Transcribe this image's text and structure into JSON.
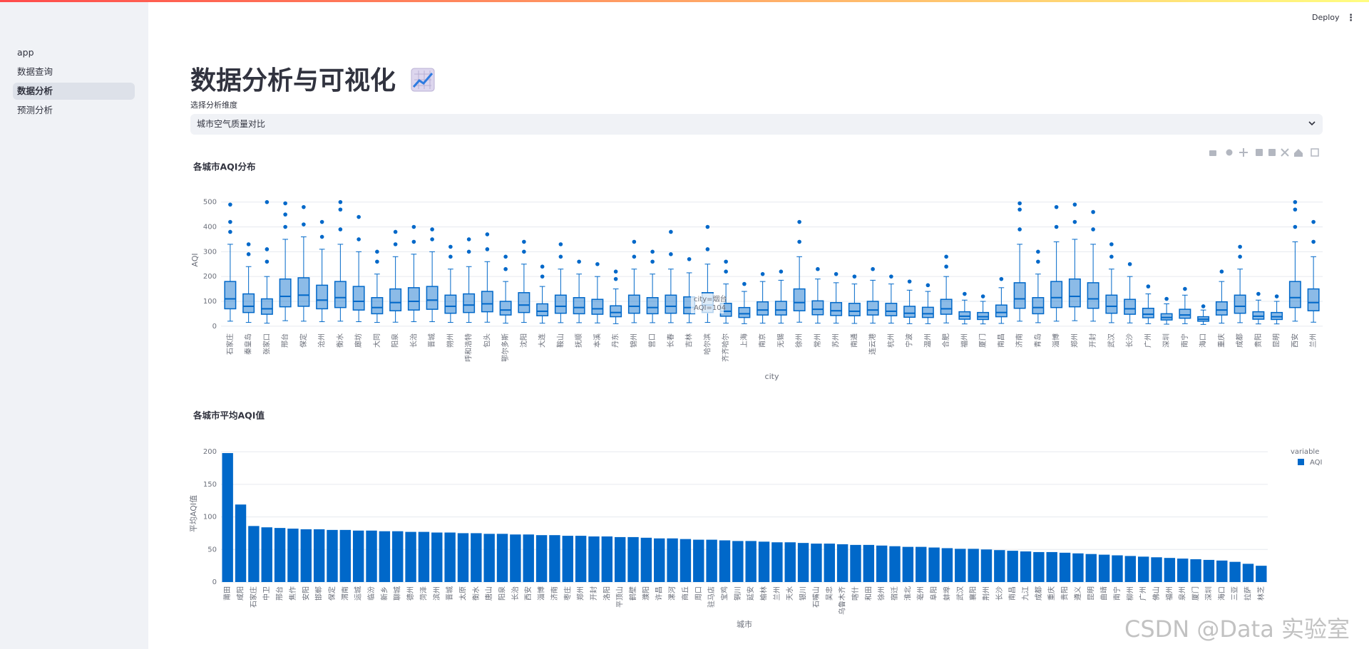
{
  "sidebar": {
    "items": [
      "app",
      "数据查询",
      "数据分析",
      "预测分析"
    ],
    "active": 2
  },
  "header": {
    "deploy": "Deploy"
  },
  "page": {
    "title": "数据分析与可视化",
    "select_label": "选择分析维度",
    "select_value": "城市空气质量对比"
  },
  "chart_data": [
    {
      "type": "box",
      "title": "各城市AQI分布",
      "x_label": "city",
      "y_label": "AQI",
      "color": "#0068c9",
      "grid": true,
      "ylim": [
        -12,
        545
      ],
      "yticks": [
        0,
        100,
        200,
        300,
        400,
        500
      ],
      "categories": [
        "石家庄",
        "秦皇岛",
        "张家口",
        "邢台",
        "保定",
        "沧州",
        "衡水",
        "廊坊",
        "大同",
        "阳泉",
        "长治",
        "晋城",
        "朔州",
        "呼和浩特",
        "包头",
        "鄂尔多斯",
        "沈阳",
        "大连",
        "鞍山",
        "抚顺",
        "本溪",
        "丹东",
        "锦州",
        "营口",
        "长春",
        "吉林",
        "哈尔滨",
        "齐齐哈尔",
        "上海",
        "南京",
        "无锡",
        "徐州",
        "常州",
        "苏州",
        "南通",
        "连云港",
        "杭州",
        "宁波",
        "温州",
        "合肥",
        "福州",
        "厦门",
        "南昌",
        "济南",
        "青岛",
        "淄博",
        "郑州",
        "开封",
        "武汉",
        "长沙",
        "广州",
        "深圳",
        "南宁",
        "海口",
        "重庆",
        "成都",
        "贵阳",
        "昆明",
        "西安",
        "兰州"
      ],
      "min": [
        20,
        15,
        12,
        22,
        20,
        18,
        20,
        18,
        15,
        16,
        18,
        18,
        15,
        15,
        16,
        12,
        15,
        12,
        14,
        14,
        13,
        10,
        14,
        14,
        14,
        14,
        15,
        12,
        10,
        12,
        12,
        16,
        12,
        12,
        11,
        12,
        12,
        10,
        10,
        13,
        9,
        9,
        11,
        20,
        14,
        20,
        22,
        20,
        14,
        13,
        10,
        8,
        10,
        7,
        12,
        14,
        9,
        9,
        20,
        16
      ],
      "q1": [
        70,
        55,
        48,
        78,
        80,
        70,
        75,
        65,
        50,
        62,
        65,
        68,
        52,
        55,
        58,
        45,
        55,
        42,
        52,
        50,
        48,
        38,
        52,
        50,
        52,
        50,
        55,
        40,
        35,
        45,
        45,
        62,
        46,
        43,
        42,
        45,
        42,
        36,
        35,
        48,
        28,
        27,
        38,
        72,
        50,
        75,
        78,
        72,
        52,
        48,
        34,
        25,
        32,
        20,
        45,
        52,
        28,
        27,
        75,
        62
      ],
      "median": [
        110,
        80,
        70,
        120,
        125,
        105,
        115,
        100,
        75,
        95,
        100,
        105,
        80,
        85,
        90,
        65,
        85,
        60,
        80,
        75,
        70,
        55,
        80,
        75,
        80,
        75,
        85,
        60,
        50,
        65,
        65,
        95,
        68,
        62,
        60,
        65,
        60,
        52,
        50,
        70,
        40,
        38,
        55,
        110,
        75,
        115,
        120,
        110,
        80,
        70,
        48,
        35,
        45,
        28,
        65,
        80,
        40,
        38,
        115,
        95
      ],
      "q3": [
        180,
        130,
        110,
        190,
        195,
        165,
        180,
        160,
        115,
        150,
        155,
        160,
        125,
        130,
        140,
        100,
        135,
        90,
        125,
        115,
        108,
        82,
        125,
        115,
        125,
        118,
        135,
        92,
        75,
        98,
        100,
        150,
        102,
        95,
        92,
        100,
        92,
        80,
        76,
        108,
        58,
        55,
        85,
        175,
        115,
        180,
        190,
        175,
        125,
        108,
        72,
        50,
        68,
        38,
        98,
        125,
        58,
        55,
        180,
        150
      ],
      "max": [
        330,
        240,
        200,
        350,
        360,
        310,
        330,
        300,
        210,
        280,
        290,
        300,
        230,
        240,
        260,
        180,
        250,
        160,
        230,
        210,
        200,
        150,
        230,
        210,
        230,
        215,
        250,
        170,
        140,
        180,
        185,
        280,
        190,
        175,
        170,
        185,
        170,
        145,
        140,
        200,
        105,
        100,
        155,
        330,
        210,
        340,
        350,
        330,
        230,
        200,
        130,
        90,
        125,
        65,
        180,
        230,
        105,
        100,
        340,
        280
      ],
      "outliers": [
        [
          380,
          420,
          490
        ],
        [
          290,
          330
        ],
        [
          260,
          310,
          500
        ],
        [
          400,
          450,
          495
        ],
        [
          410,
          480
        ],
        [
          360,
          420
        ],
        [
          390,
          470,
          500
        ],
        [
          350,
          440
        ],
        [
          260,
          300
        ],
        [
          330,
          380
        ],
        [
          340,
          400
        ],
        [
          350,
          390
        ],
        [
          280,
          320
        ],
        [
          300,
          350
        ],
        [
          310,
          370
        ],
        [
          230,
          280
        ],
        [
          300,
          340
        ],
        [
          200,
          240
        ],
        [
          280,
          330
        ],
        [
          260
        ],
        [
          250
        ],
        [
          190,
          220
        ],
        [
          280,
          340
        ],
        [
          260,
          300
        ],
        [
          290,
          380
        ],
        [
          270
        ],
        [
          310,
          400
        ],
        [
          220,
          260
        ],
        [
          170
        ],
        [
          210
        ],
        [
          220
        ],
        [
          340,
          420
        ],
        [
          230
        ],
        [
          210
        ],
        [
          200
        ],
        [
          230
        ],
        [
          200
        ],
        [
          180
        ],
        [
          165
        ],
        [
          240,
          280
        ],
        [
          130
        ],
        [
          120
        ],
        [
          190
        ],
        [
          390,
          470,
          495
        ],
        [
          260,
          300
        ],
        [
          400,
          480
        ],
        [
          420,
          490
        ],
        [
          390,
          460
        ],
        [
          280,
          330
        ],
        [
          250
        ],
        [
          160
        ],
        [
          110
        ],
        [
          150
        ],
        [
          80
        ],
        [
          220
        ],
        [
          280,
          320
        ],
        [
          130
        ],
        [
          120
        ],
        [
          400,
          470,
          500
        ],
        [
          340,
          420
        ]
      ],
      "hover": {
        "city": "city=烟台",
        "aqi": "AQI=104"
      }
    },
    {
      "type": "bar",
      "title": "各城市平均AQI值",
      "x_label": "城市",
      "y_label": "平均AQI值",
      "grid": true,
      "ylim": [
        0,
        210
      ],
      "yticks": [
        0,
        50,
        100,
        150,
        200
      ],
      "legend_title": "variable",
      "legend": "right",
      "categories": [
        "莆田",
        "咸阳",
        "石家庄",
        "中卫",
        "邢台",
        "焦作",
        "安阳",
        "邯郸",
        "保定",
        "渭南",
        "运城",
        "临汾",
        "新乡",
        "聊城",
        "德州",
        "菏泽",
        "滨州",
        "晋城",
        "太原",
        "衡水",
        "唐山",
        "阳泉",
        "长治",
        "西安",
        "淄博",
        "济南",
        "枣庄",
        "郑州",
        "开封",
        "洛阳",
        "平顶山",
        "鹤壁",
        "濮阳",
        "许昌",
        "漯河",
        "商丘",
        "周口",
        "驻马店",
        "宝鸡",
        "铜川",
        "延安",
        "榆林",
        "兰州",
        "天水",
        "银川",
        "石嘴山",
        "吴忠",
        "乌鲁木齐",
        "喀什",
        "和田",
        "徐州",
        "宿迁",
        "淮北",
        "亳州",
        "阜阳",
        "蚌埠",
        "武汉",
        "襄阳",
        "荆州",
        "长沙",
        "南昌",
        "九江",
        "成都",
        "重庆",
        "贵阳",
        "遵义",
        "昆明",
        "曲靖",
        "南宁",
        "柳州",
        "广州",
        "佛山",
        "福州",
        "泉州",
        "厦门",
        "深圳",
        "海口",
        "三亚",
        "拉萨",
        "林芝"
      ],
      "series": [
        {
          "name": "AQI",
          "color": "#0068c9",
          "values": [
            198,
            119,
            86,
            84,
            83,
            82,
            81,
            81,
            80,
            80,
            79,
            79,
            78,
            78,
            77,
            77,
            76,
            76,
            75,
            75,
            74,
            74,
            73,
            73,
            72,
            72,
            71,
            71,
            70,
            70,
            69,
            69,
            68,
            67,
            67,
            66,
            65,
            65,
            64,
            63,
            63,
            62,
            61,
            61,
            60,
            59,
            59,
            58,
            57,
            57,
            56,
            55,
            54,
            54,
            53,
            52,
            51,
            51,
            50,
            49,
            48,
            47,
            46,
            46,
            45,
            44,
            43,
            42,
            41,
            40,
            39,
            38,
            37,
            36,
            35,
            34,
            33,
            31,
            28,
            25
          ]
        }
      ]
    }
  ],
  "watermark": "CSDN @Data 实验室"
}
